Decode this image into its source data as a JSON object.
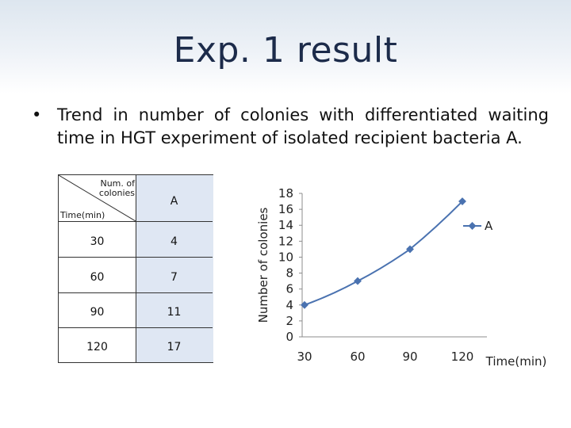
{
  "slide": {
    "title": "Exp. 1 result",
    "bullet": "Trend in number of colonies with differentiated waiting time in HGT experiment of isolated recipient bacteria A."
  },
  "table": {
    "corner_top": "Num. of colonies",
    "corner_bottom": "Time(min)",
    "column_header": "A",
    "rows": [
      {
        "time": "30",
        "value": "4"
      },
      {
        "time": "60",
        "value": "7"
      },
      {
        "time": "90",
        "value": "11"
      },
      {
        "time": "120",
        "value": "17"
      }
    ]
  },
  "chart_data": {
    "type": "line",
    "categories": [
      "30",
      "60",
      "90",
      "120"
    ],
    "series": [
      {
        "name": "A",
        "values": [
          4,
          7,
          11,
          17
        ],
        "color": "#4a72b0"
      }
    ],
    "ylabel": "Number of colonies",
    "xlabel": "Time(min)",
    "ylim": [
      0,
      18
    ],
    "yticks": [
      0,
      2,
      4,
      6,
      8,
      10,
      12,
      14,
      16,
      18
    ],
    "grid": false,
    "legend": "right"
  }
}
